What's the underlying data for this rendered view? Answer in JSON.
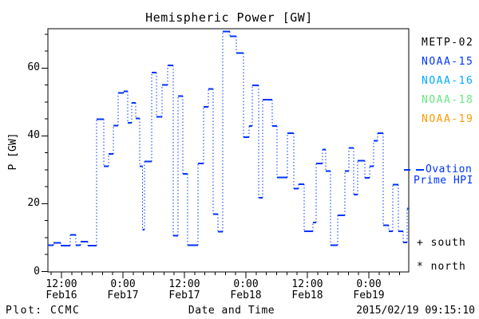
{
  "title": "Hemispheric Power [GW]",
  "y_axis": {
    "label": "P [GW]",
    "ticks": [
      0,
      20,
      40,
      60
    ],
    "minor_step": 5,
    "max": 71.7
  },
  "x_axis": {
    "label": "Date and Time",
    "ticks": [
      {
        "time": "12:00",
        "date": "Feb16",
        "hour": 12
      },
      {
        "time": "0:00",
        "date": "Feb17",
        "hour": 24
      },
      {
        "time": "12:00",
        "date": "Feb17",
        "hour": 36
      },
      {
        "time": "0:00",
        "date": "Feb18",
        "hour": 48
      },
      {
        "time": "12:00",
        "date": "Feb18",
        "hour": 60
      },
      {
        "time": "0:00",
        "date": "Feb19",
        "hour": 72
      }
    ],
    "minor_step_hours": 2
  },
  "legend": {
    "satellites": [
      {
        "label": "METP-02",
        "color": "#000000"
      },
      {
        "label": "NOAA-15",
        "color": "#0033ff"
      },
      {
        "label": "NOAA-16",
        "color": "#00aaff"
      },
      {
        "label": "NOAA-18",
        "color": "#66e680"
      },
      {
        "label": "NOAA-19",
        "color": "#ff9900"
      }
    ],
    "ovation": {
      "line1": "Ovation",
      "line2": "Prime HPI",
      "color": "#0033ff",
      "current_hpi_marker_gw": 30
    },
    "south": "+ south",
    "north": "* north"
  },
  "footer": {
    "left": "Plot: CCMC",
    "right": "2015/02/19 09:15:10"
  },
  "chart_data": {
    "type": "line",
    "subtype": "step (solid horizontal levels joined by dotted vertical connectors)",
    "title": "Hemispheric Power [GW]",
    "xlabel": "Date and Time",
    "ylabel": "P [GW]",
    "ylim": [
      0,
      71.7
    ],
    "y_ticks": [
      0,
      20,
      40,
      60
    ],
    "x_unit": "hours since 2015-02-16 00:00 UT",
    "xlim": [
      9.35,
      79.95
    ],
    "x_major_ticks": [
      "12:00 Feb16",
      "0:00 Feb17",
      "12:00 Feb17",
      "0:00 Feb18",
      "12:00 Feb18",
      "0:00 Feb19"
    ],
    "x_major_tick_hours": [
      12,
      24,
      36,
      48,
      60,
      72
    ],
    "legend_entries": [
      "METP-02",
      "NOAA-15",
      "NOAA-16",
      "NOAA-18",
      "NOAA-19",
      "- Ovation Prime HPI",
      "+ south",
      "* north"
    ],
    "grid": false,
    "series": [
      {
        "name": "Hemispheric Power (NOAA-15, blue)",
        "color": "#0033ff",
        "unit": "GW",
        "t_end": 79.78,
        "steps": [
          [
            9.35,
            7.8
          ],
          [
            10.44,
            8.5
          ],
          [
            11.84,
            7.7
          ],
          [
            13.71,
            10.8
          ],
          [
            14.81,
            7.8
          ],
          [
            15.74,
            8.8
          ],
          [
            17.14,
            7.7
          ],
          [
            18.86,
            44.9
          ],
          [
            20.26,
            31.0
          ],
          [
            21.19,
            34.7
          ],
          [
            22.13,
            43.1
          ],
          [
            23.06,
            52.7
          ],
          [
            24.15,
            53.2
          ],
          [
            24.93,
            43.9
          ],
          [
            25.71,
            49.8
          ],
          [
            26.49,
            45.1
          ],
          [
            27.27,
            31.0
          ],
          [
            27.82,
            12.4
          ],
          [
            28.21,
            32.5
          ],
          [
            29.61,
            58.7
          ],
          [
            30.55,
            45.6
          ],
          [
            31.64,
            55.0
          ],
          [
            32.73,
            60.8
          ],
          [
            33.82,
            10.6
          ],
          [
            34.75,
            51.8
          ],
          [
            35.69,
            28.8
          ],
          [
            36.62,
            7.8
          ],
          [
            38.65,
            31.9
          ],
          [
            39.74,
            48.6
          ],
          [
            40.67,
            53.9
          ],
          [
            41.61,
            16.9
          ],
          [
            42.54,
            11.8
          ],
          [
            43.48,
            70.8
          ],
          [
            44.88,
            69.4
          ],
          [
            46.13,
            64.5
          ],
          [
            47.53,
            39.6
          ],
          [
            48.62,
            42.9
          ],
          [
            49.25,
            54.9
          ],
          [
            50.49,
            21.8
          ],
          [
            51.27,
            50.7
          ],
          [
            53.14,
            42.9
          ],
          [
            54.08,
            27.8
          ],
          [
            56.1,
            40.8
          ],
          [
            57.35,
            24.5
          ],
          [
            58.28,
            25.7
          ],
          [
            59.37,
            11.9
          ],
          [
            61.09,
            14.5
          ],
          [
            61.71,
            31.9
          ],
          [
            62.96,
            36.0
          ],
          [
            63.58,
            29.6
          ],
          [
            64.52,
            7.8
          ],
          [
            65.92,
            16.6
          ],
          [
            67.32,
            29.6
          ],
          [
            68.1,
            36.5
          ],
          [
            69.04,
            22.7
          ],
          [
            69.82,
            32.7
          ],
          [
            71.22,
            27.6
          ],
          [
            72.15,
            31.0
          ],
          [
            72.93,
            38.6
          ],
          [
            73.71,
            40.8
          ],
          [
            74.8,
            13.7
          ],
          [
            75.89,
            11.9
          ],
          [
            76.67,
            25.6
          ],
          [
            77.76,
            11.9
          ],
          [
            78.69,
            8.6
          ],
          [
            79.47,
            18.6
          ]
        ]
      }
    ]
  }
}
